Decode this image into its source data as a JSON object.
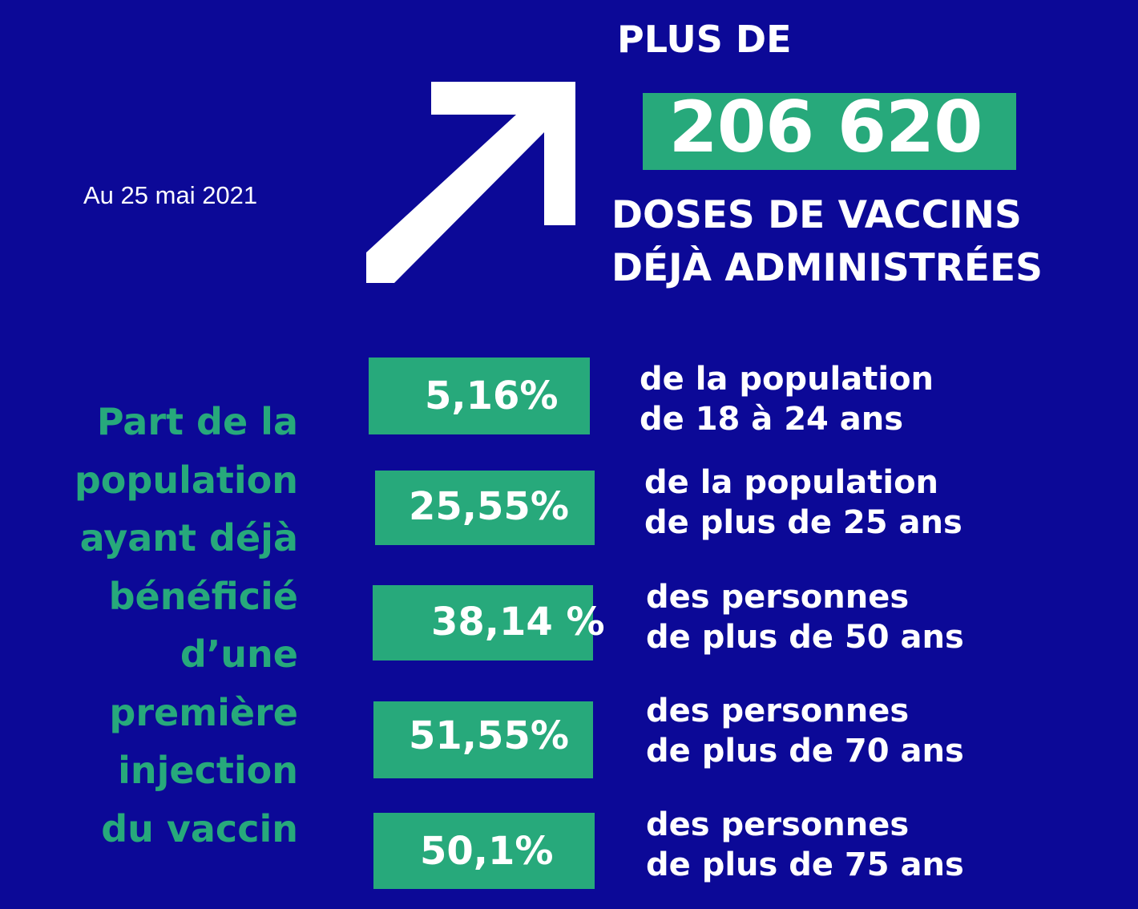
{
  "date": "Au 25 mai 2021",
  "headline": {
    "prefix": "PLUS DE",
    "number": "206 620",
    "caption_line1": "DOSES DE VACCINS",
    "caption_line2": "DÉJÀ ADMINISTRÉES"
  },
  "left_label": [
    "Part de la",
    "population",
    "ayant déjà",
    "bénéficié",
    "d’une",
    "première",
    "injection",
    "du vaccin"
  ],
  "stats": [
    {
      "value": "5,16%",
      "desc_line1": "de la population",
      "desc_line2": "de 18 à 24 ans"
    },
    {
      "value": "25,55%",
      "desc_line1": "de la population",
      "desc_line2": "de plus de 25 ans"
    },
    {
      "value": "38,14 %",
      "desc_line1": "des personnes",
      "desc_line2": "de plus de 50 ans"
    },
    {
      "value": "51,55%",
      "desc_line1": "des personnes",
      "desc_line2": "de plus de 70 ans"
    },
    {
      "value": "50,1%",
      "desc_line1": "des personnes",
      "desc_line2": "de plus de 75 ans"
    }
  ],
  "colors": {
    "background": "#0c0997",
    "accent_green": "#27a97b",
    "text": "#ffffff"
  },
  "icons": {
    "arrow": "arrow-up-right-icon"
  }
}
